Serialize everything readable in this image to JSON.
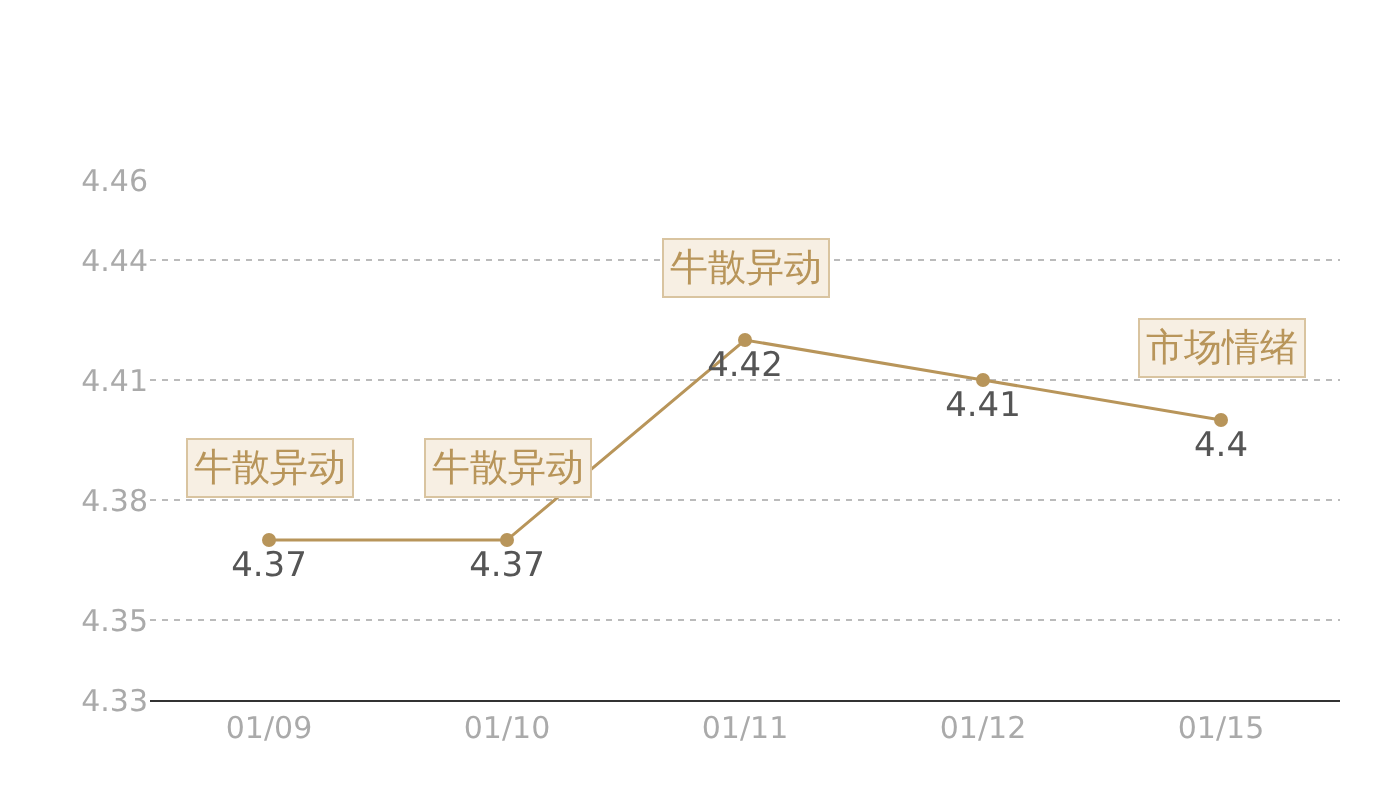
{
  "chart_data": {
    "type": "line",
    "categories": [
      "01/09",
      "01/10",
      "01/11",
      "01/12",
      "01/15"
    ],
    "series": [
      {
        "color": "#b8955a",
        "values": [
          4.37,
          4.37,
          4.42,
          4.41,
          4.4
        ]
      }
    ],
    "ylim": [
      4.33,
      4.46
    ],
    "yticks": [
      4.33,
      4.35,
      4.38,
      4.41,
      4.44,
      4.46
    ],
    "grid": "y",
    "marker": "circle",
    "line_style": "solid",
    "data_labels": true,
    "annotations": [
      {
        "text": "牛散异动",
        "x": "01/09",
        "y": 4.37
      },
      {
        "text": "牛散异动",
        "x": "01/10",
        "y": 4.37
      },
      {
        "text": "牛散异动",
        "x": "01/11",
        "y": 4.42
      },
      {
        "text": "市场情绪",
        "x": "01/15",
        "y": 4.4
      }
    ]
  }
}
